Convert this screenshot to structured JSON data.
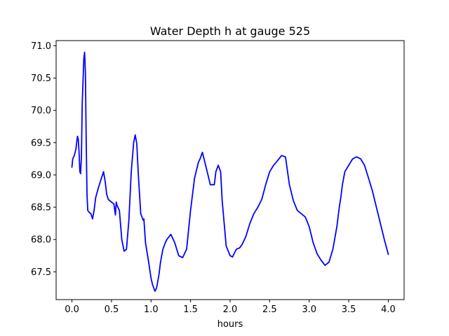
{
  "chart_data": {
    "type": "line",
    "title": "Water Depth h at gauge 525",
    "xlabel": "hours",
    "ylabel": "",
    "xlim": [
      -0.2,
      4.2
    ],
    "ylim": [
      67.07,
      71.08
    ],
    "xticks": [
      0.0,
      0.5,
      1.0,
      1.5,
      2.0,
      2.5,
      3.0,
      3.5,
      4.0
    ],
    "xtick_labels": [
      "0.0",
      "0.5",
      "1.0",
      "1.5",
      "2.0",
      "2.5",
      "3.0",
      "3.5",
      "4.0"
    ],
    "yticks": [
      67.5,
      68.0,
      68.5,
      69.0,
      69.5,
      70.0,
      70.5,
      71.0
    ],
    "ytick_labels": [
      "67.5",
      "68.0",
      "68.5",
      "69.0",
      "69.5",
      "70.0",
      "70.5",
      "71.0"
    ],
    "grid": false,
    "legend": "none",
    "series": [
      {
        "color": "#0000ff",
        "x": [
          0.0,
          0.01,
          0.03,
          0.05,
          0.07,
          0.08,
          0.09,
          0.1,
          0.11,
          0.12,
          0.13,
          0.15,
          0.16,
          0.17,
          0.18,
          0.19,
          0.2,
          0.22,
          0.24,
          0.26,
          0.28,
          0.3,
          0.33,
          0.36,
          0.4,
          0.42,
          0.44,
          0.46,
          0.5,
          0.53,
          0.55,
          0.56,
          0.57,
          0.6,
          0.63,
          0.66,
          0.69,
          0.72,
          0.75,
          0.78,
          0.8,
          0.82,
          0.84,
          0.87,
          0.9,
          0.91,
          0.93,
          0.97,
          1.0,
          1.02,
          1.05,
          1.07,
          1.1,
          1.12,
          1.15,
          1.18,
          1.2,
          1.25,
          1.3,
          1.35,
          1.4,
          1.45,
          1.5,
          1.55,
          1.6,
          1.62,
          1.65,
          1.7,
          1.75,
          1.8,
          1.82,
          1.85,
          1.88,
          1.9,
          1.95,
          2.0,
          2.03,
          2.05,
          2.08,
          2.12,
          2.15,
          2.2,
          2.25,
          2.3,
          2.35,
          2.4,
          2.45,
          2.5,
          2.55,
          2.6,
          2.65,
          2.7,
          2.75,
          2.8,
          2.85,
          2.9,
          2.95,
          3.0,
          3.05,
          3.1,
          3.15,
          3.2,
          3.25,
          3.3,
          3.35,
          3.38,
          3.4,
          3.42,
          3.45,
          3.5,
          3.55,
          3.6,
          3.65,
          3.7,
          3.75,
          3.8,
          3.85,
          3.9,
          3.95,
          4.0
        ],
        "y": [
          69.12,
          69.25,
          69.3,
          69.4,
          69.6,
          69.55,
          69.35,
          69.05,
          69.02,
          69.3,
          70.1,
          70.8,
          70.9,
          70.6,
          69.6,
          68.7,
          68.45,
          68.42,
          68.4,
          68.32,
          68.45,
          68.65,
          68.78,
          68.9,
          69.05,
          68.9,
          68.7,
          68.62,
          68.58,
          68.55,
          68.38,
          68.58,
          68.53,
          68.45,
          68.0,
          67.82,
          67.85,
          68.3,
          69.05,
          69.5,
          69.62,
          69.48,
          69.0,
          68.4,
          68.3,
          68.32,
          67.95,
          67.65,
          67.4,
          67.3,
          67.2,
          67.25,
          67.45,
          67.65,
          67.85,
          67.95,
          68.0,
          68.08,
          67.95,
          67.75,
          67.72,
          67.85,
          68.45,
          68.95,
          69.2,
          69.25,
          69.35,
          69.1,
          68.85,
          68.85,
          69.05,
          69.15,
          69.05,
          68.6,
          67.9,
          67.75,
          67.73,
          67.78,
          67.85,
          67.87,
          67.92,
          68.05,
          68.25,
          68.4,
          68.5,
          68.62,
          68.85,
          69.05,
          69.15,
          69.22,
          69.3,
          69.28,
          68.85,
          68.6,
          68.45,
          68.4,
          68.35,
          68.2,
          67.95,
          67.78,
          67.68,
          67.6,
          67.65,
          67.85,
          68.2,
          68.5,
          68.65,
          68.85,
          69.05,
          69.15,
          69.25,
          69.28,
          69.25,
          69.15,
          68.95,
          68.75,
          68.5,
          68.25,
          68.0,
          67.77
        ]
      }
    ]
  }
}
